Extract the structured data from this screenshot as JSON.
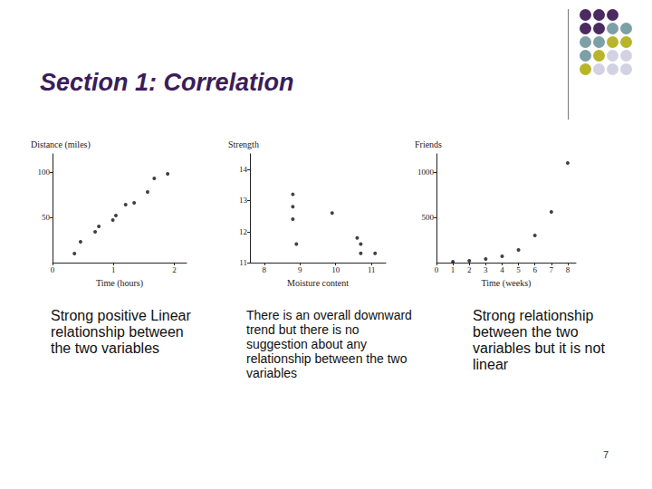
{
  "title": "Section 1: Correlation",
  "page_number": 7,
  "chart_data": [
    {
      "type": "scatter",
      "y_label": "Distance (miles)",
      "x_label": "Time (hours)",
      "x": [
        0.36,
        0.46,
        0.7,
        0.76,
        0.99,
        1.04,
        1.2,
        1.34,
        1.56,
        1.67,
        1.89
      ],
      "values": [
        10,
        23,
        34,
        40,
        47,
        52,
        64,
        66,
        78,
        93,
        98
      ],
      "xlim": [
        0,
        2.2
      ],
      "ylim": [
        0,
        120
      ],
      "xticks": [
        0,
        1,
        2
      ],
      "yticks": [
        50,
        100
      ],
      "color": "#111111",
      "marker": "circle",
      "grid": false,
      "caption": "Strong positive Linear relationship between the two variables"
    },
    {
      "type": "scatter",
      "y_label": "Strength",
      "x_label": "Moisture content",
      "x": [
        8.8,
        8.8,
        8.8,
        8.9,
        9.9,
        10.6,
        10.7,
        10.7,
        11.1
      ],
      "values": [
        13.2,
        12.8,
        12.4,
        11.6,
        12.6,
        11.8,
        11.6,
        11.3,
        11.3
      ],
      "xlim": [
        7.6,
        11.4
      ],
      "ylim": [
        11,
        14.5
      ],
      "xticks": [
        8,
        9,
        10,
        11
      ],
      "yticks": [
        11,
        12,
        13,
        14
      ],
      "color": "#111111",
      "marker": "circle",
      "grid": false,
      "caption": "There is an overall downward trend but there is no suggestion about any relationship between the two variables"
    },
    {
      "type": "scatter",
      "y_label": "Friends",
      "x_label": "Time (weeks)",
      "x": [
        1,
        2,
        3,
        4,
        5,
        6,
        7,
        8
      ],
      "values": [
        10,
        20,
        40,
        70,
        140,
        300,
        560,
        1100
      ],
      "xlim": [
        0,
        8.5
      ],
      "ylim": [
        0,
        1200
      ],
      "xticks": [
        0,
        1,
        2,
        3,
        4,
        5,
        6,
        7,
        8
      ],
      "yticks": [
        500,
        1000
      ],
      "color": "#111111",
      "marker": "circle",
      "grid": false,
      "caption": "Strong relationship between the two variables but it is not linear"
    }
  ]
}
